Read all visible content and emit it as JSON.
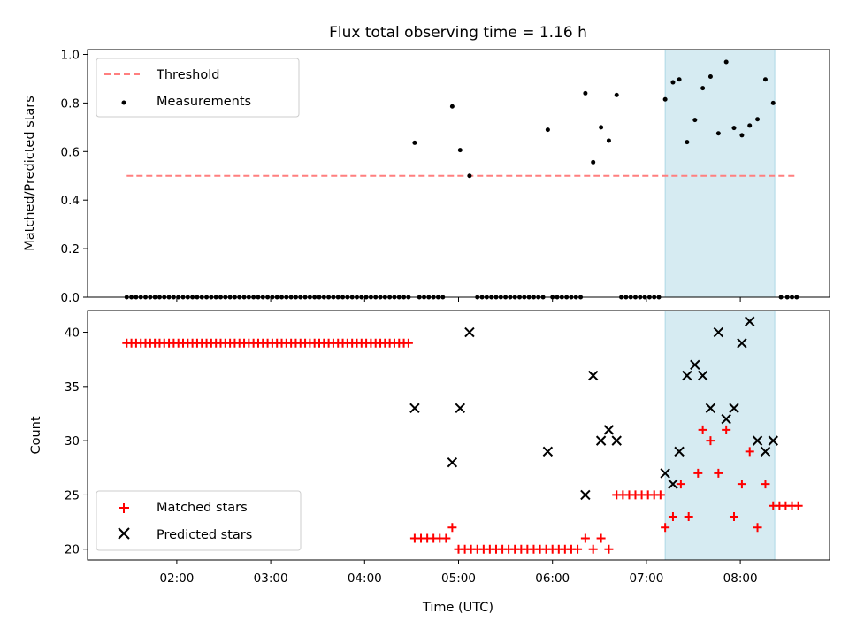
{
  "chart_data": [
    {
      "type": "scatter",
      "title": "Flux total observing time = 1.16 h",
      "xlabel": "",
      "ylabel": "Matched/Predicted stars",
      "xlim_hours": [
        1.05,
        8.95
      ],
      "ylim": [
        0,
        1.02
      ],
      "yticks": [
        "0.0",
        "0.2",
        "0.4",
        "0.6",
        "0.8",
        "1.0"
      ],
      "shaded_interval_hours": [
        7.2,
        8.367
      ],
      "shade_color": "#add8e6",
      "legend_position": "upper left",
      "series": [
        {
          "name": "Threshold",
          "kind": "dashed-line",
          "color": "#ff7f7f",
          "x_hours": [
            1.467,
            8.6
          ],
          "y": [
            0.5,
            0.5
          ]
        },
        {
          "name": "Measurements",
          "kind": "dots",
          "color": "#000000",
          "x_hours": [
            1.467,
            1.517,
            1.567,
            1.617,
            1.667,
            1.717,
            1.767,
            1.817,
            1.867,
            1.917,
            1.967,
            2.017,
            2.067,
            2.117,
            2.167,
            2.217,
            2.267,
            2.317,
            2.367,
            2.417,
            2.467,
            2.517,
            2.567,
            2.617,
            2.667,
            2.717,
            2.767,
            2.817,
            2.867,
            2.917,
            2.967,
            3.017,
            3.067,
            3.117,
            3.167,
            3.217,
            3.267,
            3.317,
            3.367,
            3.417,
            3.467,
            3.517,
            3.567,
            3.617,
            3.667,
            3.717,
            3.767,
            3.817,
            3.867,
            3.917,
            3.967,
            4.017,
            4.067,
            4.117,
            4.167,
            4.217,
            4.267,
            4.317,
            4.367,
            4.417,
            4.467,
            4.533,
            4.583,
            4.633,
            4.683,
            4.733,
            4.783,
            4.833,
            4.933,
            5.017,
            5.117,
            5.2,
            5.25,
            5.3,
            5.35,
            5.4,
            5.45,
            5.5,
            5.55,
            5.6,
            5.65,
            5.7,
            5.75,
            5.8,
            5.85,
            5.9,
            5.95,
            6.0,
            6.05,
            6.1,
            6.15,
            6.2,
            6.25,
            6.3,
            6.35,
            6.433,
            6.517,
            6.6,
            6.683,
            6.733,
            6.783,
            6.833,
            6.883,
            6.933,
            6.983,
            7.033,
            7.083,
            7.133,
            7.2,
            7.283,
            7.35,
            7.433,
            7.517,
            7.6,
            7.683,
            7.767,
            7.85,
            7.933,
            8.017,
            8.1,
            8.183,
            8.267,
            8.35,
            8.433,
            8.5,
            8.55,
            8.6
          ],
          "y": [
            0,
            0,
            0,
            0,
            0,
            0,
            0,
            0,
            0,
            0,
            0,
            0,
            0,
            0,
            0,
            0,
            0,
            0,
            0,
            0,
            0,
            0,
            0,
            0,
            0,
            0,
            0,
            0,
            0,
            0,
            0,
            0,
            0,
            0,
            0,
            0,
            0,
            0,
            0,
            0,
            0,
            0,
            0,
            0,
            0,
            0,
            0,
            0,
            0,
            0,
            0,
            0,
            0,
            0,
            0,
            0,
            0,
            0,
            0,
            0,
            0,
            0.636,
            0,
            0,
            0,
            0,
            0,
            0,
            0.786,
            0.606,
            0.5,
            0,
            0,
            0,
            0,
            0,
            0,
            0,
            0,
            0,
            0,
            0,
            0,
            0,
            0,
            0,
            0.69,
            0,
            0,
            0,
            0,
            0,
            0,
            0,
            0.84,
            0.556,
            0.7,
            0.645,
            0.833,
            0,
            0,
            0,
            0,
            0,
            0,
            0,
            0,
            0,
            0.815,
            0.885,
            0.897,
            0.639,
            0.73,
            0.861,
            0.909,
            0.675,
            0.969,
            0.697,
            0.667,
            0.707,
            0.733,
            0.897,
            0.8,
            0,
            0,
            0,
            0
          ]
        }
      ]
    },
    {
      "type": "scatter",
      "title": "",
      "xlabel": "Time (UTC)",
      "ylabel": "Count",
      "xlim_hours": [
        1.05,
        8.95
      ],
      "ylim": [
        19,
        42
      ],
      "yticks": [
        "20",
        "25",
        "30",
        "35",
        "40"
      ],
      "xticks": [
        "02:00",
        "03:00",
        "04:00",
        "05:00",
        "06:00",
        "07:00",
        "08:00"
      ],
      "shaded_interval_hours": [
        7.2,
        8.367
      ],
      "shade_color": "#add8e6",
      "legend_position": "lower left",
      "series": [
        {
          "name": "Matched stars",
          "kind": "plus",
          "color": "#ff0000",
          "x_hours": [
            1.467,
            1.517,
            1.567,
            1.617,
            1.667,
            1.717,
            1.767,
            1.817,
            1.867,
            1.917,
            1.967,
            2.017,
            2.067,
            2.117,
            2.167,
            2.217,
            2.267,
            2.317,
            2.367,
            2.417,
            2.467,
            2.517,
            2.567,
            2.617,
            2.667,
            2.717,
            2.767,
            2.817,
            2.867,
            2.917,
            2.967,
            3.017,
            3.067,
            3.117,
            3.167,
            3.217,
            3.267,
            3.317,
            3.367,
            3.417,
            3.467,
            3.517,
            3.567,
            3.617,
            3.667,
            3.717,
            3.767,
            3.817,
            3.867,
            3.917,
            3.967,
            4.017,
            4.067,
            4.117,
            4.167,
            4.217,
            4.267,
            4.317,
            4.367,
            4.417,
            4.467,
            4.533,
            4.6,
            4.667,
            4.733,
            4.8,
            4.867,
            4.933,
            5.0,
            5.067,
            5.133,
            5.2,
            5.267,
            5.333,
            5.4,
            5.467,
            5.533,
            5.6,
            5.667,
            5.733,
            5.8,
            5.867,
            5.933,
            6.0,
            6.067,
            6.133,
            6.2,
            6.267,
            6.35,
            6.433,
            6.517,
            6.6,
            6.683,
            6.75,
            6.817,
            6.883,
            6.95,
            7.017,
            7.083,
            7.15,
            7.2,
            7.283,
            7.367,
            7.45,
            7.55,
            7.6,
            7.683,
            7.767,
            7.85,
            7.933,
            8.017,
            8.1,
            8.183,
            8.267,
            8.35,
            8.417,
            8.483,
            8.55,
            8.617
          ],
          "y": [
            39,
            39,
            39,
            39,
            39,
            39,
            39,
            39,
            39,
            39,
            39,
            39,
            39,
            39,
            39,
            39,
            39,
            39,
            39,
            39,
            39,
            39,
            39,
            39,
            39,
            39,
            39,
            39,
            39,
            39,
            39,
            39,
            39,
            39,
            39,
            39,
            39,
            39,
            39,
            39,
            39,
            39,
            39,
            39,
            39,
            39,
            39,
            39,
            39,
            39,
            39,
            39,
            39,
            39,
            39,
            39,
            39,
            39,
            39,
            39,
            39,
            21,
            21,
            21,
            21,
            21,
            21,
            22,
            20,
            20,
            20,
            20,
            20,
            20,
            20,
            20,
            20,
            20,
            20,
            20,
            20,
            20,
            20,
            20,
            20,
            20,
            20,
            20,
            21,
            20,
            21,
            20,
            25,
            25,
            25,
            25,
            25,
            25,
            25,
            25,
            22,
            23,
            26,
            23,
            27,
            31,
            30,
            27,
            31,
            23,
            26,
            29,
            22,
            26,
            24,
            24,
            24,
            24,
            24
          ]
        },
        {
          "name": "Predicted stars",
          "kind": "x",
          "color": "#000000",
          "x_hours": [
            4.533,
            4.933,
            5.017,
            5.117,
            5.95,
            6.35,
            6.433,
            6.517,
            6.6,
            6.683,
            7.2,
            7.283,
            7.35,
            7.433,
            7.517,
            7.6,
            7.683,
            7.767,
            7.85,
            7.933,
            8.017,
            8.1,
            8.183,
            8.267,
            8.35
          ],
          "y": [
            33,
            28,
            33,
            40,
            29,
            25,
            36,
            30,
            31,
            30,
            27,
            26,
            29,
            36,
            37,
            36,
            33,
            40,
            32,
            33,
            39,
            41,
            30,
            29,
            30
          ]
        }
      ]
    }
  ]
}
